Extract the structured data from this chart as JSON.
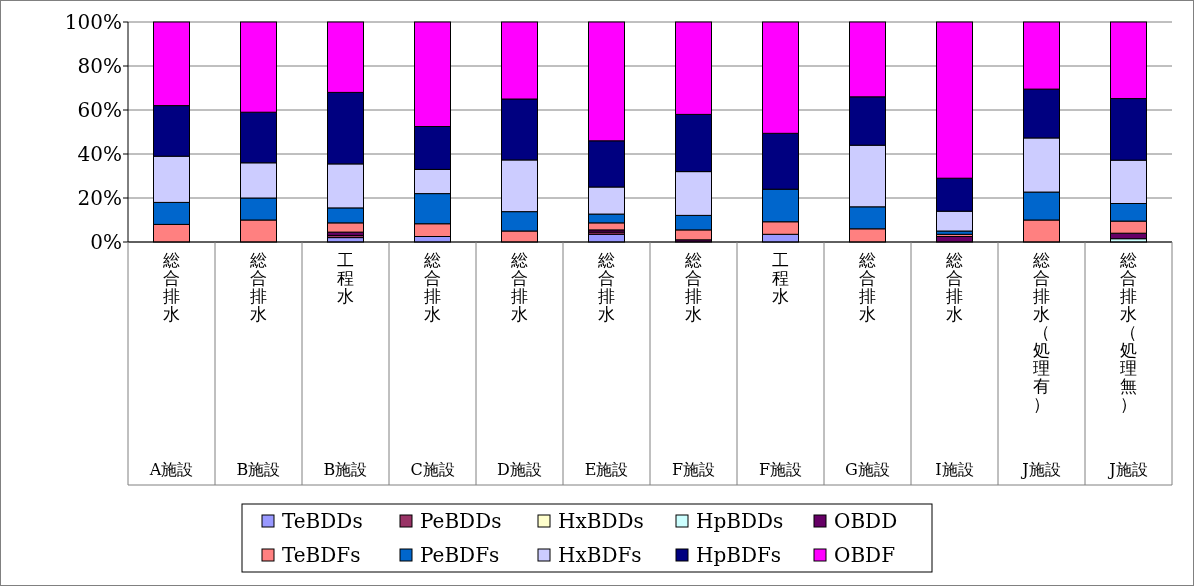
{
  "chart_data": {
    "type": "bar",
    "stacked": true,
    "grid": "y",
    "legend": "bottom",
    "categories": [
      "総合排水",
      "総合排水",
      "工程水",
      "総合排水",
      "総合排水",
      "総合排水",
      "総合排水",
      "工程水",
      "総合排水",
      "総合排水",
      "総合排水（処理有）",
      "総合排水（処理無）"
    ],
    "annotations": [
      "A施設",
      "B施設",
      "B施設",
      "C施設",
      "D施設",
      "E施設",
      "F施設",
      "F施設",
      "G施設",
      "I施設",
      "J施設",
      "J施設"
    ],
    "ylim": [
      0,
      100
    ],
    "yticks": [
      {
        "value": 0,
        "label": "0%"
      },
      {
        "value": 20,
        "label": "20%"
      },
      {
        "value": 40,
        "label": "40%"
      },
      {
        "value": 60,
        "label": "60%"
      },
      {
        "value": 80,
        "label": "80%"
      },
      {
        "value": 100,
        "label": "100%"
      }
    ],
    "series": [
      {
        "name": "TeBDDs",
        "color": "#9999ff",
        "values": [
          0,
          0,
          2,
          2.5,
          0,
          3.5,
          0,
          3.5,
          0,
          0,
          0,
          0
        ]
      },
      {
        "name": "PeBDDs",
        "color": "#993366",
        "values": [
          0,
          0,
          1,
          0,
          0,
          1,
          0,
          0,
          0,
          0,
          0,
          0
        ]
      },
      {
        "name": "HxBDDs",
        "color": "#ffffcc",
        "values": [
          0,
          0,
          0,
          0,
          0,
          0,
          0,
          0,
          0,
          0,
          0,
          0
        ]
      },
      {
        "name": "HpBDDs",
        "color": "#ccffff",
        "values": [
          0,
          0,
          0,
          0,
          0,
          0,
          0,
          0,
          0,
          0,
          0,
          1.5
        ]
      },
      {
        "name": "OBDD",
        "color": "#660066",
        "values": [
          0,
          0,
          1.5,
          0,
          0,
          1,
          1,
          0,
          0,
          2.5,
          0,
          2.5
        ]
      },
      {
        "name": "TeBDFs",
        "color": "#ff8080",
        "values": [
          8,
          10,
          4.2,
          5.8,
          5,
          3.2,
          4.5,
          5.7,
          6,
          1,
          10,
          5.5
        ]
      },
      {
        "name": "PeBDFs",
        "color": "#0066cc",
        "values": [
          10,
          10,
          6.8,
          13.7,
          8.8,
          4,
          6.6,
          14.8,
          10,
          1.5,
          12.7,
          8
        ]
      },
      {
        "name": "HxBDFs",
        "color": "#ccccff",
        "values": [
          21,
          16,
          20,
          11,
          23.5,
          12.3,
          19.9,
          0,
          28,
          9,
          24.6,
          19.7
        ]
      },
      {
        "name": "HpBDFs",
        "color": "#000080",
        "values": [
          23,
          23,
          32.5,
          19.5,
          27.7,
          21,
          26,
          25.4,
          22,
          15,
          22.2,
          28
        ]
      },
      {
        "name": "OBDF",
        "color": "#ff00ff",
        "values": [
          38,
          41,
          32,
          47.5,
          35,
          54,
          42,
          50.6,
          34,
          71,
          30.5,
          34.8
        ]
      }
    ]
  }
}
